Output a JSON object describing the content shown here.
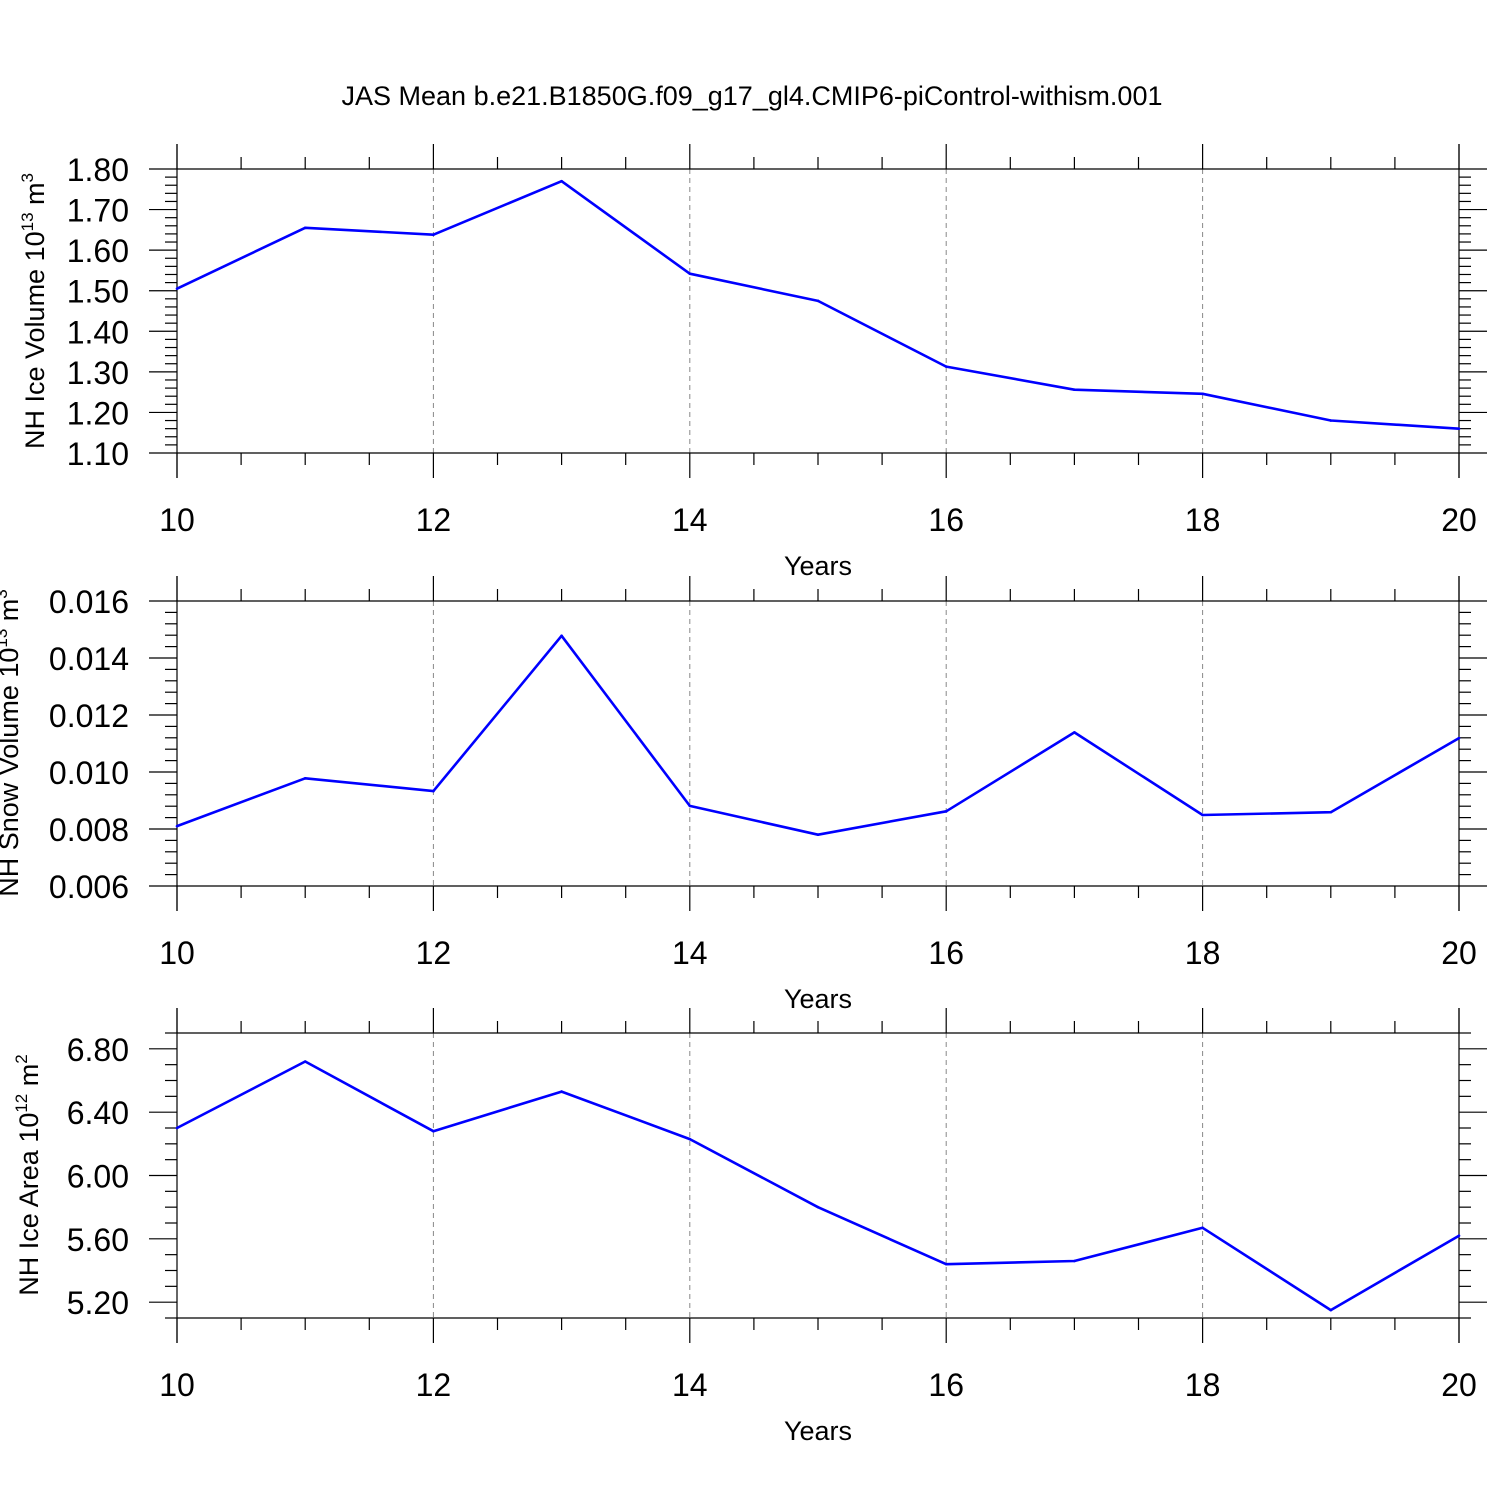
{
  "title": "JAS Mean b.e21.B1850G.f09_g17_gl4.CMIP6-piControl-withism.001",
  "colors": {
    "series": "#0000ff",
    "grid": "#888888",
    "axis": "#000000"
  },
  "chart_data": [
    {
      "type": "line",
      "ylabel": "NH Ice Volume 10",
      "ylabel_sup": "13",
      "ylabel_unit": " m",
      "ylabel_unit_sup": "3",
      "xlabel": "Years",
      "xlim": [
        10,
        20
      ],
      "ylim": [
        1.1,
        1.8
      ],
      "xticks": [
        10,
        12,
        14,
        16,
        18,
        20
      ],
      "yticks": [
        1.1,
        1.2,
        1.3,
        1.4,
        1.5,
        1.6,
        1.7,
        1.8
      ],
      "ytick_labels": [
        "1.10",
        "1.20",
        "1.30",
        "1.40",
        "1.50",
        "1.60",
        "1.70",
        "1.80"
      ],
      "yminor_step": 0.02,
      "grid": "x-dashed",
      "x": [
        10,
        11,
        12,
        13,
        14,
        15,
        16,
        17,
        18,
        19,
        20
      ],
      "y": [
        1.505,
        1.655,
        1.638,
        1.77,
        1.542,
        1.475,
        1.313,
        1.256,
        1.246,
        1.18,
        1.16
      ]
    },
    {
      "type": "line",
      "ylabel": "NH Snow Volume 10",
      "ylabel_sup": "13",
      "ylabel_unit": " m",
      "ylabel_unit_sup": "3",
      "xlabel": "Years",
      "xlim": [
        10,
        20
      ],
      "ylim": [
        0.006,
        0.016
      ],
      "xticks": [
        10,
        12,
        14,
        16,
        18,
        20
      ],
      "yticks": [
        0.006,
        0.008,
        0.01,
        0.012,
        0.014,
        0.016
      ],
      "ytick_labels": [
        "0.006",
        "0.008",
        "0.010",
        "0.012",
        "0.014",
        "0.016"
      ],
      "yminor_step": 0.0004,
      "grid": "x-dashed",
      "x": [
        10,
        11,
        12,
        13,
        14,
        15,
        16,
        17,
        18,
        19,
        20
      ],
      "y": [
        0.0081,
        0.00978,
        0.00933,
        0.01478,
        0.00881,
        0.0078,
        0.00862,
        0.01139,
        0.00849,
        0.00859,
        0.01119
      ]
    },
    {
      "type": "line",
      "ylabel": "NH Ice Area 10",
      "ylabel_sup": "12",
      "ylabel_unit": " m",
      "ylabel_unit_sup": "2",
      "xlabel": "Years",
      "xlim": [
        10,
        20
      ],
      "ylim": [
        5.1,
        6.9
      ],
      "xticks": [
        10,
        12,
        14,
        16,
        18,
        20
      ],
      "yticks": [
        5.2,
        5.6,
        6.0,
        6.4,
        6.8
      ],
      "ytick_labels": [
        "5.20",
        "5.60",
        "6.00",
        "6.40",
        "6.80"
      ],
      "yminor_step": 0.1,
      "grid": "x-dashed",
      "x": [
        10,
        11,
        12,
        13,
        14,
        15,
        16,
        17,
        18,
        19,
        20
      ],
      "y": [
        6.3,
        6.72,
        6.28,
        6.53,
        6.23,
        5.8,
        5.44,
        5.46,
        5.67,
        5.15,
        5.62
      ]
    }
  ]
}
